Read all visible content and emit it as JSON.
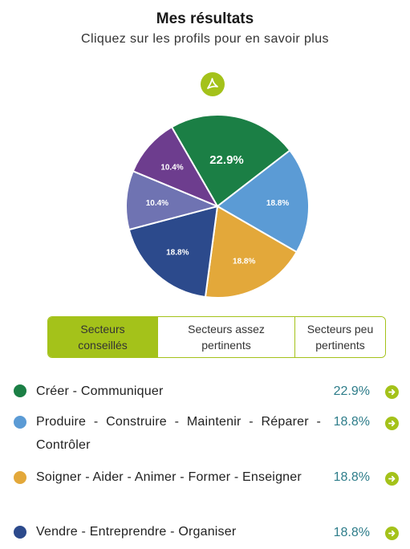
{
  "header": {
    "title": "Mes résultats",
    "subtitle": "Cliquez sur les profils pour en savoir plus"
  },
  "pdf_button": {
    "icon": "pdf-icon",
    "color": "#a4c21a"
  },
  "chart_data": {
    "type": "pie",
    "labels": [
      "Créer - Communiquer",
      "Produire - Construire - Maintenir - Réparer - Contrôler",
      "Soigner - Aider - Animer - Former - Enseigner",
      "Vendre - Entreprendre - Organiser",
      "",
      ""
    ],
    "values": [
      22.9,
      18.8,
      18.8,
      18.8,
      10.4,
      10.4
    ],
    "value_labels": [
      "22.9%",
      "18.8%",
      "18.8%",
      "18.8%",
      "10.4%",
      "10.4%"
    ],
    "colors": [
      "#1b7f45",
      "#5b9bd5",
      "#e3a83a",
      "#2c4a8c",
      "#6f73b2",
      "#6d3d8e"
    ]
  },
  "tabs": [
    {
      "label": "Secteurs conseillés",
      "active": true
    },
    {
      "label": "Secteurs assez pertinents",
      "active": false
    },
    {
      "label": "Secteurs peu pertinents",
      "active": false
    }
  ],
  "results": [
    {
      "label": "Créer - Communiquer",
      "percent": "22.9%",
      "color": "#1b7f45"
    },
    {
      "label": "Produire - Construire - Maintenir - Réparer - Contrôler",
      "percent": "18.8%",
      "color": "#5b9bd5"
    },
    {
      "label": "Soigner - Aider - Animer - Former - Enseigner",
      "percent": "18.8%",
      "color": "#e3a83a"
    },
    {
      "label": "Vendre - Entreprendre - Organiser",
      "percent": "18.8%",
      "color": "#2c4a8c"
    }
  ],
  "accent_color": "#a4c21a",
  "percent_color": "#2e7d8a"
}
